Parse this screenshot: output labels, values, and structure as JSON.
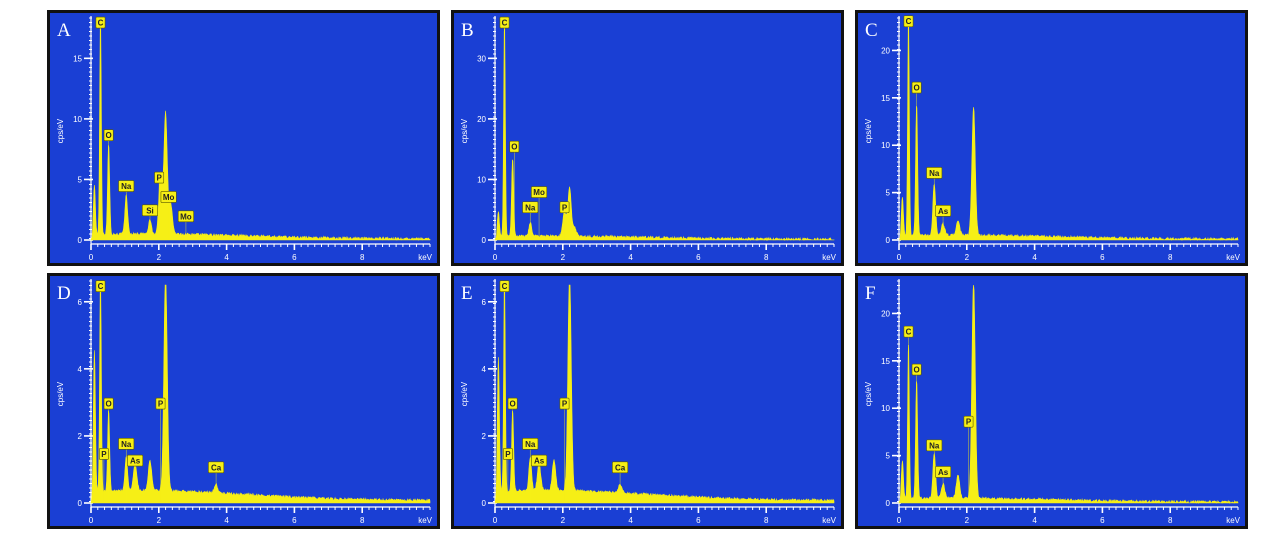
{
  "colors": {
    "background": "#1a3fd4",
    "spectrum": "#f6ef16",
    "frame": "#111111",
    "tick": "#ffffff",
    "badge_bg": "#f6ef16",
    "badge_text": "#222222"
  },
  "chart_data": [
    {
      "type": "area",
      "panel_label": "A",
      "xlabel": "keV",
      "ylabel": "cps/eV",
      "x_ticks": [
        "0",
        "2",
        "4",
        "6",
        "8"
      ],
      "y_ticks": [
        "0",
        "5",
        "10",
        "15"
      ],
      "xlim": [
        0,
        10
      ],
      "ylim": [
        0,
        18
      ],
      "baseline": 0.4,
      "peaks": [
        {
          "x": 0.1,
          "y": 4.0,
          "w": 0.03
        },
        {
          "x": 0.28,
          "y": 18.0,
          "w": 0.025
        },
        {
          "x": 0.52,
          "y": 7.5,
          "w": 0.03
        },
        {
          "x": 1.04,
          "y": 3.2,
          "w": 0.04
        },
        {
          "x": 1.74,
          "y": 1.2,
          "w": 0.04
        },
        {
          "x": 2.05,
          "y": 5.0,
          "w": 0.05
        },
        {
          "x": 2.2,
          "y": 10.0,
          "w": 0.05
        },
        {
          "x": 2.35,
          "y": 2.5,
          "w": 0.05
        }
      ],
      "labels": [
        {
          "text": "C",
          "x": 0.28,
          "y": 17.5
        },
        {
          "text": "O",
          "x": 0.52,
          "y": 8.2
        },
        {
          "text": "Na",
          "x": 1.04,
          "y": 4.0
        },
        {
          "text": "Si",
          "x": 1.74,
          "y": 2.0
        },
        {
          "text": "P",
          "x": 2.01,
          "y": 4.7
        },
        {
          "text": "Mo",
          "x": 2.29,
          "y": 3.1
        },
        {
          "text": "Mo",
          "x": 2.8,
          "y": 1.5
        }
      ]
    },
    {
      "type": "area",
      "panel_label": "B",
      "xlabel": "keV",
      "ylabel": "cps/eV",
      "x_ticks": [
        "0",
        "2",
        "4",
        "6",
        "8"
      ],
      "y_ticks": [
        "0",
        "10",
        "20",
        "30"
      ],
      "xlim": [
        0,
        10
      ],
      "ylim": [
        0,
        36
      ],
      "baseline": 0.5,
      "peaks": [
        {
          "x": 0.1,
          "y": 4.0,
          "w": 0.03
        },
        {
          "x": 0.28,
          "y": 36.0,
          "w": 0.025
        },
        {
          "x": 0.52,
          "y": 13.0,
          "w": 0.03
        },
        {
          "x": 1.04,
          "y": 2.3,
          "w": 0.04
        },
        {
          "x": 2.05,
          "y": 4.0,
          "w": 0.05
        },
        {
          "x": 2.2,
          "y": 8.0,
          "w": 0.05
        },
        {
          "x": 2.35,
          "y": 1.5,
          "w": 0.05
        }
      ],
      "labels": [
        {
          "text": "C",
          "x": 0.28,
          "y": 35.0
        },
        {
          "text": "O",
          "x": 0.57,
          "y": 14.5
        },
        {
          "text": "Na",
          "x": 1.04,
          "y": 4.5
        },
        {
          "text": "Mo",
          "x": 1.3,
          "y": 7.0
        },
        {
          "text": "P",
          "x": 2.05,
          "y": 4.5
        }
      ]
    },
    {
      "type": "area",
      "panel_label": "C",
      "xlabel": "keV",
      "ylabel": "cps/eV",
      "x_ticks": [
        "0",
        "2",
        "4",
        "6",
        "8"
      ],
      "y_ticks": [
        "0",
        "5",
        "10",
        "15",
        "20"
      ],
      "xlim": [
        0,
        10
      ],
      "ylim": [
        0,
        23
      ],
      "baseline": 0.4,
      "peaks": [
        {
          "x": 0.1,
          "y": 4.0,
          "w": 0.03
        },
        {
          "x": 0.28,
          "y": 23.0,
          "w": 0.025
        },
        {
          "x": 0.52,
          "y": 14.0,
          "w": 0.03
        },
        {
          "x": 1.04,
          "y": 5.5,
          "w": 0.04
        },
        {
          "x": 1.3,
          "y": 1.2,
          "w": 0.05
        },
        {
          "x": 1.74,
          "y": 1.5,
          "w": 0.05
        },
        {
          "x": 2.2,
          "y": 13.5,
          "w": 0.05
        }
      ],
      "labels": [
        {
          "text": "C",
          "x": 0.28,
          "y": 22.5
        },
        {
          "text": "O",
          "x": 0.52,
          "y": 15.5
        },
        {
          "text": "Na",
          "x": 1.04,
          "y": 6.5
        },
        {
          "text": "As",
          "x": 1.3,
          "y": 2.5
        }
      ]
    },
    {
      "type": "area",
      "panel_label": "D",
      "xlabel": "keV",
      "ylabel": "cps/eV",
      "x_ticks": [
        "0",
        "2",
        "4",
        "6",
        "8"
      ],
      "y_ticks": [
        "0",
        "2",
        "4",
        "6"
      ],
      "xlim": [
        0,
        10
      ],
      "ylim": [
        0,
        6.5
      ],
      "baseline": 0.3,
      "peaks": [
        {
          "x": 0.1,
          "y": 4.2,
          "w": 0.03
        },
        {
          "x": 0.28,
          "y": 6.5,
          "w": 0.025
        },
        {
          "x": 0.52,
          "y": 2.4,
          "w": 0.03
        },
        {
          "x": 1.04,
          "y": 1.0,
          "w": 0.04
        },
        {
          "x": 1.3,
          "y": 0.8,
          "w": 0.05
        },
        {
          "x": 1.74,
          "y": 0.9,
          "w": 0.05
        },
        {
          "x": 2.2,
          "y": 6.5,
          "w": 0.05
        },
        {
          "x": 3.69,
          "y": 0.25,
          "w": 0.05
        }
      ],
      "labels": [
        {
          "text": "C",
          "x": 0.28,
          "y": 6.3
        },
        {
          "text": "O",
          "x": 0.52,
          "y": 2.8
        },
        {
          "text": "P",
          "x": 0.38,
          "y": 1.3
        },
        {
          "text": "Na",
          "x": 1.04,
          "y": 1.6
        },
        {
          "text": "As",
          "x": 1.3,
          "y": 1.1
        },
        {
          "text": "P",
          "x": 2.05,
          "y": 2.8
        },
        {
          "text": "Ca",
          "x": 3.69,
          "y": 0.9
        }
      ]
    },
    {
      "type": "area",
      "panel_label": "E",
      "xlabel": "keV",
      "ylabel": "cps/eV",
      "x_ticks": [
        "0",
        "2",
        "4",
        "6",
        "8"
      ],
      "y_ticks": [
        "0",
        "2",
        "4",
        "6"
      ],
      "xlim": [
        0,
        10
      ],
      "ylim": [
        0,
        6.5
      ],
      "baseline": 0.3,
      "peaks": [
        {
          "x": 0.1,
          "y": 4.0,
          "w": 0.03
        },
        {
          "x": 0.28,
          "y": 6.5,
          "w": 0.025
        },
        {
          "x": 0.52,
          "y": 2.4,
          "w": 0.03
        },
        {
          "x": 1.04,
          "y": 1.0,
          "w": 0.04
        },
        {
          "x": 1.3,
          "y": 0.8,
          "w": 0.05
        },
        {
          "x": 1.74,
          "y": 0.9,
          "w": 0.05
        },
        {
          "x": 2.2,
          "y": 6.5,
          "w": 0.05
        },
        {
          "x": 3.69,
          "y": 0.25,
          "w": 0.05
        }
      ],
      "labels": [
        {
          "text": "C",
          "x": 0.28,
          "y": 6.3
        },
        {
          "text": "O",
          "x": 0.52,
          "y": 2.8
        },
        {
          "text": "P",
          "x": 0.38,
          "y": 1.3
        },
        {
          "text": "Na",
          "x": 1.04,
          "y": 1.6
        },
        {
          "text": "As",
          "x": 1.3,
          "y": 1.1
        },
        {
          "text": "P",
          "x": 2.05,
          "y": 2.8
        },
        {
          "text": "Ca",
          "x": 3.69,
          "y": 0.9
        }
      ]
    },
    {
      "type": "area",
      "panel_label": "F",
      "xlabel": "keV",
      "ylabel": "cps/eV",
      "x_ticks": [
        "0",
        "2",
        "4",
        "6",
        "8"
      ],
      "y_ticks": [
        "0",
        "5",
        "10",
        "15",
        "20"
      ],
      "xlim": [
        0,
        10
      ],
      "ylim": [
        0,
        23
      ],
      "baseline": 0.4,
      "peaks": [
        {
          "x": 0.1,
          "y": 4.0,
          "w": 0.03
        },
        {
          "x": 0.28,
          "y": 16.5,
          "w": 0.025
        },
        {
          "x": 0.52,
          "y": 12.5,
          "w": 0.03
        },
        {
          "x": 1.04,
          "y": 4.8,
          "w": 0.04
        },
        {
          "x": 1.3,
          "y": 1.5,
          "w": 0.05
        },
        {
          "x": 1.74,
          "y": 2.5,
          "w": 0.05
        },
        {
          "x": 2.2,
          "y": 23.0,
          "w": 0.05
        }
      ],
      "labels": [
        {
          "text": "C",
          "x": 0.28,
          "y": 17.5
        },
        {
          "text": "O",
          "x": 0.52,
          "y": 13.5
        },
        {
          "text": "Na",
          "x": 1.04,
          "y": 5.5
        },
        {
          "text": "As",
          "x": 1.3,
          "y": 2.7
        },
        {
          "text": "P",
          "x": 2.05,
          "y": 8.0
        }
      ]
    }
  ]
}
